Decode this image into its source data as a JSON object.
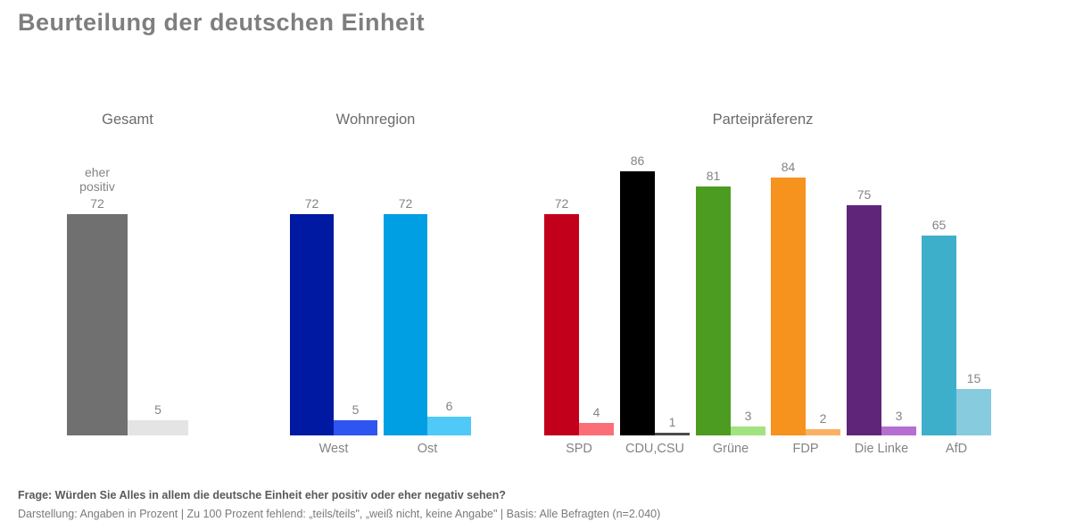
{
  "title": "Beurteilung der deutschen Einheit",
  "footer": {
    "question": "Frage: Würden Sie Alles in allem die deutsche Einheit eher positiv oder eher negativ sehen?",
    "note": "Darstellung: Angaben in Prozent | Zu 100 Prozent fehlend: „teils/teils\", „weiß nicht, keine Angabe\" | Basis: Alle Befragten (n=2.040)"
  },
  "chart_data": {
    "type": "bar",
    "unit": "Prozent",
    "ylim": [
      0,
      100
    ],
    "grid": false,
    "legend_position": "inline-above-first-bar",
    "series_label_positive": "eher\npositiv",
    "sections": [
      {
        "title": "Gesamt",
        "groups": [
          {
            "category": "",
            "values": [
              72,
              5
            ],
            "colors": [
              "#707070",
              "#e4e4e4"
            ],
            "show_series_label": true
          }
        ]
      },
      {
        "title": "Wohnregion",
        "groups": [
          {
            "category": "West",
            "values": [
              72,
              5
            ],
            "colors": [
              "#0019a3",
              "#2e55f0"
            ],
            "show_series_label": false
          },
          {
            "category": "Ost",
            "values": [
              72,
              6
            ],
            "colors": [
              "#009ee3",
              "#4fc9f7"
            ],
            "show_series_label": false
          }
        ]
      },
      {
        "title": "Parteipräferenz",
        "groups": [
          {
            "category": "SPD",
            "values": [
              72,
              4
            ],
            "colors": [
              "#c3001b",
              "#fc6e77"
            ],
            "show_series_label": false
          },
          {
            "category": "CDU,CSU",
            "values": [
              86,
              1
            ],
            "colors": [
              "#000000",
              "#4b4b4b"
            ],
            "show_series_label": false
          },
          {
            "category": "Grüne",
            "values": [
              81,
              3
            ],
            "colors": [
              "#4c9c22",
              "#a0e380"
            ],
            "show_series_label": false
          },
          {
            "category": "FDP",
            "values": [
              84,
              2
            ],
            "colors": [
              "#f6921e",
              "#f9b164"
            ],
            "show_series_label": false
          },
          {
            "category": "Die Linke",
            "values": [
              75,
              3
            ],
            "colors": [
              "#5f2578",
              "#b46fd0"
            ],
            "show_series_label": false
          },
          {
            "category": "AfD",
            "values": [
              65,
              15
            ],
            "colors": [
              "#3eafcb",
              "#87cbde"
            ],
            "show_series_label": false
          }
        ]
      }
    ]
  }
}
